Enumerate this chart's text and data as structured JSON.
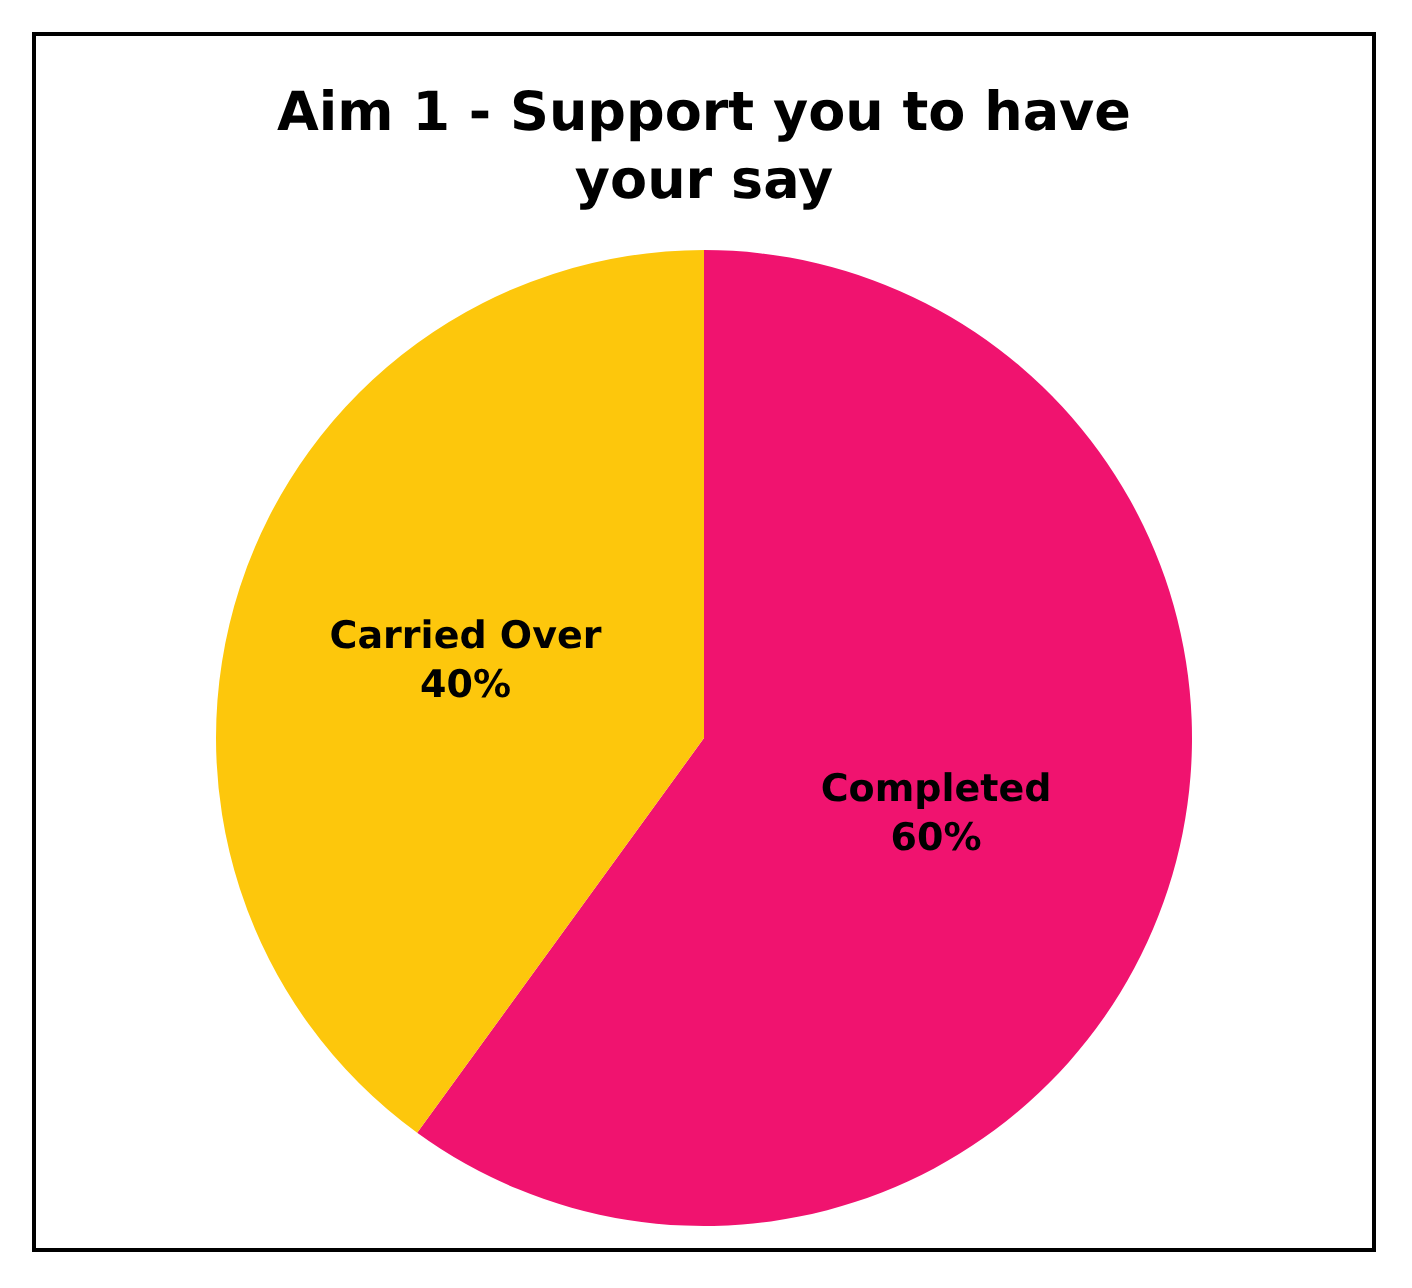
{
  "chart_data": {
    "type": "pie",
    "title": "Aim 1 - Support you to have your say",
    "categories": [
      "Completed",
      "Carried Over"
    ],
    "values": [
      60,
      40
    ],
    "value_labels": [
      "60%",
      "40%"
    ],
    "colors": [
      "#f0136f",
      "#fdc70c"
    ],
    "legend": false
  }
}
